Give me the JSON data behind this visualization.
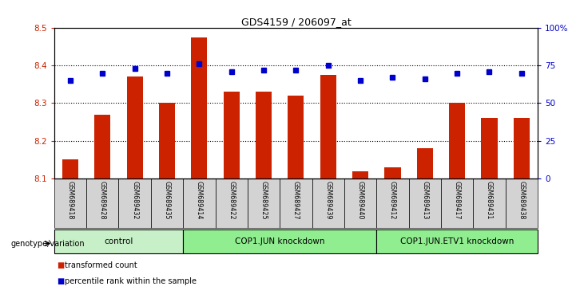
{
  "title": "GDS4159 / 206097_at",
  "samples": [
    "GSM689418",
    "GSM689428",
    "GSM689432",
    "GSM689435",
    "GSM689414",
    "GSM689422",
    "GSM689425",
    "GSM689427",
    "GSM689439",
    "GSM689440",
    "GSM689412",
    "GSM689413",
    "GSM689417",
    "GSM689431",
    "GSM689438"
  ],
  "transformed_count": [
    8.15,
    8.27,
    8.37,
    8.3,
    8.475,
    8.33,
    8.33,
    8.32,
    8.375,
    8.12,
    8.13,
    8.18,
    8.3,
    8.26,
    8.26
  ],
  "percentile_rank": [
    65,
    70,
    73,
    70,
    76,
    71,
    72,
    72,
    75,
    65,
    67,
    66,
    70,
    71,
    70
  ],
  "groups": [
    {
      "label": "control",
      "start": 0,
      "end": 4
    },
    {
      "label": "COP1.JUN knockdown",
      "start": 4,
      "end": 10
    },
    {
      "label": "COP1.JUN.ETV1 knockdown",
      "start": 10,
      "end": 15
    }
  ],
  "ylim_left": [
    8.1,
    8.5
  ],
  "ylim_right": [
    0,
    100
  ],
  "bar_color": "#cc2200",
  "dot_color": "#0000cc",
  "bg_color": "#ffffff",
  "tick_label_color_left": "#cc2200",
  "tick_label_color_right": "#0000cc",
  "group_colors": [
    "#c8f0c8",
    "#90ee90",
    "#90ee90"
  ],
  "sample_bg_color": "#d3d3d3",
  "legend_red_label": "transformed count",
  "legend_blue_label": "percentile rank within the sample",
  "xlabel": "genotype/variation"
}
